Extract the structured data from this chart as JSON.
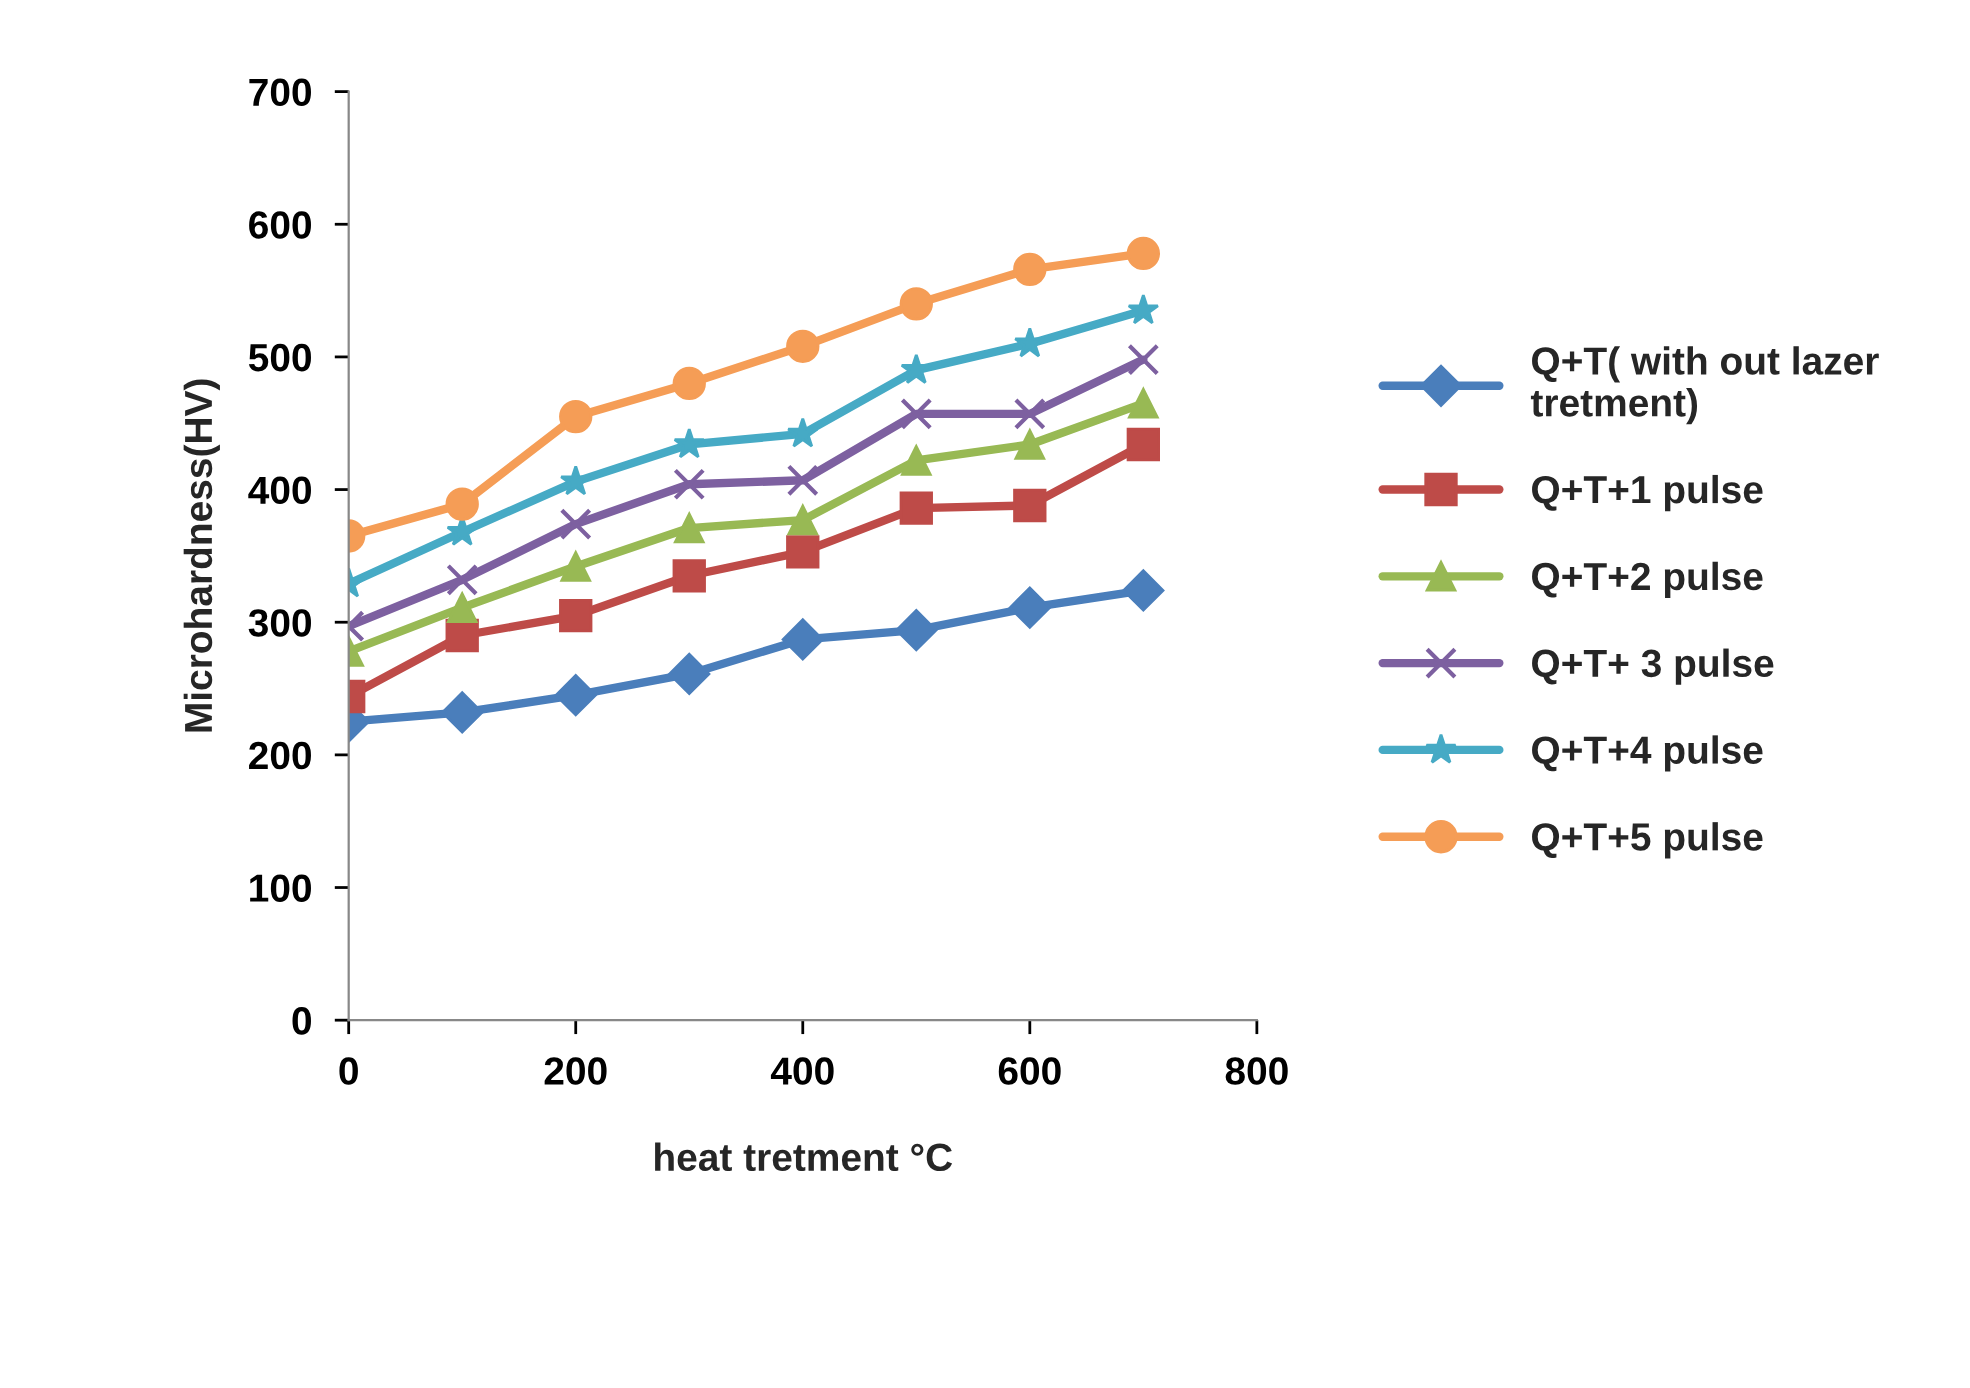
{
  "chart_data": {
    "type": "line",
    "xlabel": "heat tretment °C",
    "ylabel": "Microhardness(HV)",
    "x": [
      0,
      100,
      200,
      300,
      400,
      500,
      600,
      700
    ],
    "xlim": [
      0,
      800
    ],
    "xticks": [
      0,
      200,
      400,
      600,
      800
    ],
    "ylim": [
      0,
      700
    ],
    "yticks": [
      0,
      100,
      200,
      300,
      400,
      500,
      600,
      700
    ],
    "grid": false,
    "legend": "right",
    "line_style": "solid",
    "series": [
      {
        "name": "Q+T( with out lazer\ntretment)",
        "color": "#4a7ebb",
        "marker": "diamond",
        "values": [
          225,
          232,
          245,
          261,
          287,
          294,
          311,
          324
        ]
      },
      {
        "name": "Q+T+1 pulse",
        "color": "#be4b48",
        "marker": "square",
        "values": [
          244,
          290,
          305,
          335,
          353,
          386,
          388,
          434
        ]
      },
      {
        "name": "Q+T+2 pulse",
        "color": "#98b954",
        "marker": "triangle",
        "values": [
          278,
          311,
          342,
          371,
          377,
          422,
          434,
          465
        ]
      },
      {
        "name": "Q+T+ 3 pulse",
        "color": "#7d60a0",
        "marker": "cross",
        "values": [
          297,
          332,
          374,
          404,
          407,
          457,
          457,
          498
        ]
      },
      {
        "name": "Q+T+4 pulse",
        "color": "#46aac5",
        "marker": "star",
        "values": [
          329,
          368,
          406,
          434,
          442,
          490,
          510,
          535
        ]
      },
      {
        "name": "Q+T+5 pulse",
        "color": "#f59d56",
        "marker": "circle",
        "values": [
          365,
          389,
          455,
          480,
          508,
          540,
          566,
          578
        ]
      }
    ]
  }
}
